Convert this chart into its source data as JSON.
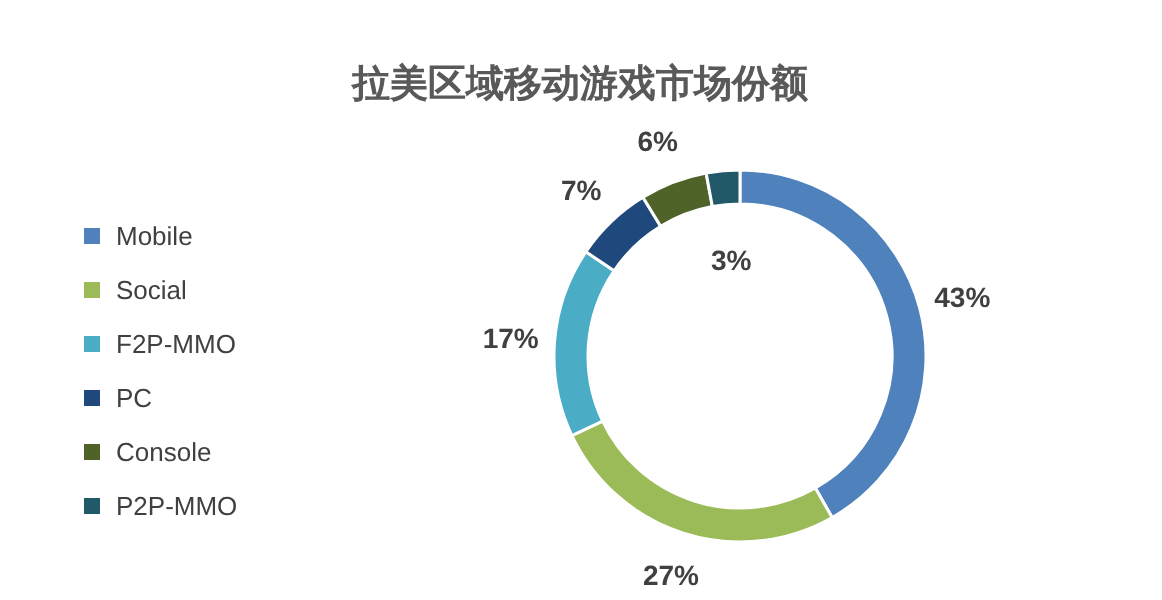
{
  "chart_data": {
    "type": "donut",
    "title": "拉美区域移动游戏市场份额",
    "categories": [
      "Mobile",
      "Social",
      "F2P-MMO",
      "PC",
      "Console",
      "P2P-MMO"
    ],
    "values": [
      43,
      27,
      17,
      7,
      6,
      3
    ],
    "colors": [
      "#4f81bd",
      "#9bbb59",
      "#4bacc6",
      "#1f497d",
      "#4f6228",
      "#215968"
    ],
    "value_labels": [
      "43%",
      "27%",
      "17%",
      "7%",
      "6%",
      "3%"
    ],
    "legend": "left"
  }
}
